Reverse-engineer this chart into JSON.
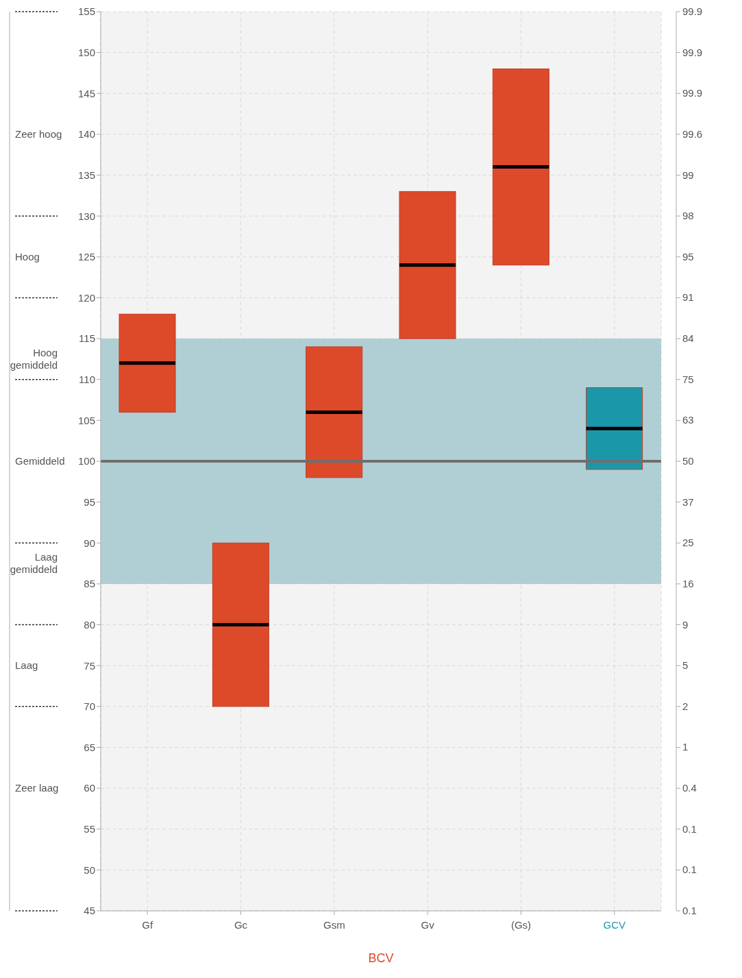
{
  "chart_data": {
    "type": "box",
    "xlabel": "BCV",
    "categories": [
      "Gf",
      "Gc",
      "Gsm",
      "Gv",
      "(Gs)",
      "GCV"
    ],
    "series": [
      {
        "colors": [
          "#dd4a2a",
          "#dd4a2a",
          "#dd4a2a",
          "#dd4a2a",
          "#dd4a2a",
          "#1a98aa"
        ],
        "boxes": [
          {
            "low": 106,
            "q1": 106,
            "median": 112,
            "q3": 118,
            "high": 118
          },
          {
            "low": 70,
            "q1": 70,
            "median": 80,
            "q3": 90,
            "high": 90
          },
          {
            "low": 98,
            "q1": 98,
            "median": 106,
            "q3": 114,
            "high": 114
          },
          {
            "low": 115,
            "q1": 115,
            "median": 124,
            "q3": 133,
            "high": 133
          },
          {
            "low": 124,
            "q1": 124,
            "median": 136,
            "q3": 148,
            "high": 148
          },
          {
            "low": 99,
            "q1": 99,
            "median": 104,
            "q3": 109,
            "high": 109
          }
        ]
      }
    ],
    "ylim": [
      45,
      155
    ],
    "yticks": [
      45,
      50,
      55,
      60,
      65,
      70,
      75,
      80,
      85,
      90,
      95,
      100,
      105,
      110,
      115,
      120,
      125,
      130,
      135,
      140,
      145,
      150,
      155
    ],
    "annotations": [
      "0.1",
      "0.1",
      "0.1",
      "0.4",
      "1",
      "2",
      "5",
      "9",
      "16",
      "25",
      "37",
      "50",
      "63",
      "75",
      "84",
      "91",
      "95",
      "98",
      "99",
      "99.6",
      "99.9",
      "99.9",
      "99.9",
      "Zeer laag",
      "Laag",
      "Laag gemiddeld",
      "Gemiddeld",
      "Hoog gemiddeld",
      "Hoog",
      "Zeer hoog"
    ],
    "bands": [
      {
        "axis": "y",
        "from": 85,
        "to": 115,
        "color": "#a9cbd0"
      }
    ],
    "ref_lines": [
      {
        "axis": "y",
        "value": 100,
        "color": "#6e6e6e"
      }
    ],
    "grid": true
  }
}
